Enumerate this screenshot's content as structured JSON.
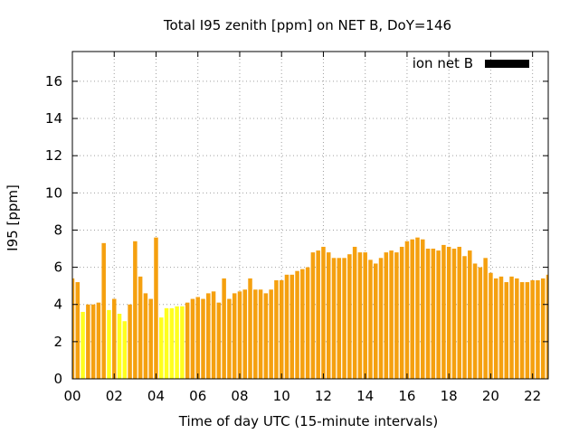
{
  "chart_data": {
    "type": "bar",
    "title": "Total I95 zenith [ppm] on NET B, DoY=146",
    "xlabel": "Time of day UTC (15-minute intervals)",
    "ylabel": "I95 [ppm]",
    "ylim": [
      0,
      17.6
    ],
    "xlim": [
      0,
      22.75
    ],
    "grid": true,
    "legend": {
      "position": "top-right",
      "entries": [
        {
          "label": "ion net B",
          "color": "#000000"
        }
      ]
    },
    "x_ticks": [
      {
        "value": 0,
        "label": "00"
      },
      {
        "value": 2,
        "label": "02"
      },
      {
        "value": 4,
        "label": "04"
      },
      {
        "value": 6,
        "label": "06"
      },
      {
        "value": 8,
        "label": "08"
      },
      {
        "value": 10,
        "label": "10"
      },
      {
        "value": 12,
        "label": "12"
      },
      {
        "value": 14,
        "label": "14"
      },
      {
        "value": 16,
        "label": "16"
      },
      {
        "value": 18,
        "label": "18"
      },
      {
        "value": 20,
        "label": "20"
      },
      {
        "value": 22,
        "label": "22"
      }
    ],
    "y_ticks": [
      {
        "value": 0,
        "label": "0"
      },
      {
        "value": 2,
        "label": "2"
      },
      {
        "value": 4,
        "label": "4"
      },
      {
        "value": 6,
        "label": "6"
      },
      {
        "value": 8,
        "label": "8"
      },
      {
        "value": 10,
        "label": "10"
      },
      {
        "value": 12,
        "label": "12"
      },
      {
        "value": 14,
        "label": "14"
      },
      {
        "value": 16,
        "label": "16"
      }
    ],
    "interval_hours": 0.25,
    "colors": {
      "orange": "#f5a00f",
      "yellow": "#ffff1e"
    },
    "values": [
      5.4,
      5.2,
      3.6,
      4.0,
      4.0,
      4.1,
      7.3,
      3.7,
      4.3,
      3.5,
      3.1,
      4.0,
      7.4,
      5.5,
      4.6,
      4.3,
      7.6,
      3.3,
      3.8,
      3.8,
      3.9,
      3.9,
      4.1,
      4.3,
      4.4,
      4.3,
      4.6,
      4.7,
      4.1,
      5.4,
      4.3,
      4.6,
      4.7,
      4.8,
      5.4,
      4.8,
      4.8,
      4.6,
      4.8,
      5.3,
      5.3,
      5.6,
      5.6,
      5.8,
      5.9,
      6.0,
      6.8,
      6.9,
      7.1,
      6.8,
      6.5,
      6.5,
      6.5,
      6.7,
      7.1,
      6.8,
      6.8,
      6.4,
      6.2,
      6.5,
      6.8,
      6.9,
      6.8,
      7.1,
      7.4,
      7.5,
      7.6,
      7.5,
      7.0,
      7.0,
      6.9,
      7.2,
      7.1,
      7.0,
      7.1,
      6.6,
      6.9,
      6.2,
      6.0,
      6.5,
      5.7,
      5.4,
      5.5,
      5.2,
      5.5,
      5.4,
      5.2,
      5.2,
      5.3,
      5.3,
      5.4,
      5.6
    ],
    "bar_colors": [
      "orange",
      "orange",
      "yellow",
      "orange",
      "orange",
      "orange",
      "orange",
      "yellow",
      "orange",
      "yellow",
      "yellow",
      "orange",
      "orange",
      "orange",
      "orange",
      "orange",
      "orange",
      "yellow",
      "yellow",
      "yellow",
      "yellow",
      "yellow",
      "orange",
      "orange",
      "orange",
      "orange",
      "orange",
      "orange",
      "orange",
      "orange",
      "orange",
      "orange",
      "orange",
      "orange",
      "orange",
      "orange",
      "orange",
      "orange",
      "orange",
      "orange",
      "orange",
      "orange",
      "orange",
      "orange",
      "orange",
      "orange",
      "orange",
      "orange",
      "orange",
      "orange",
      "orange",
      "orange",
      "orange",
      "orange",
      "orange",
      "orange",
      "orange",
      "orange",
      "orange",
      "orange",
      "orange",
      "orange",
      "orange",
      "orange",
      "orange",
      "orange",
      "orange",
      "orange",
      "orange",
      "orange",
      "orange",
      "orange",
      "orange",
      "orange",
      "orange",
      "orange",
      "orange",
      "orange",
      "orange",
      "orange",
      "orange",
      "orange",
      "orange",
      "orange",
      "orange",
      "orange",
      "orange",
      "orange",
      "orange",
      "orange",
      "orange",
      "orange"
    ]
  }
}
